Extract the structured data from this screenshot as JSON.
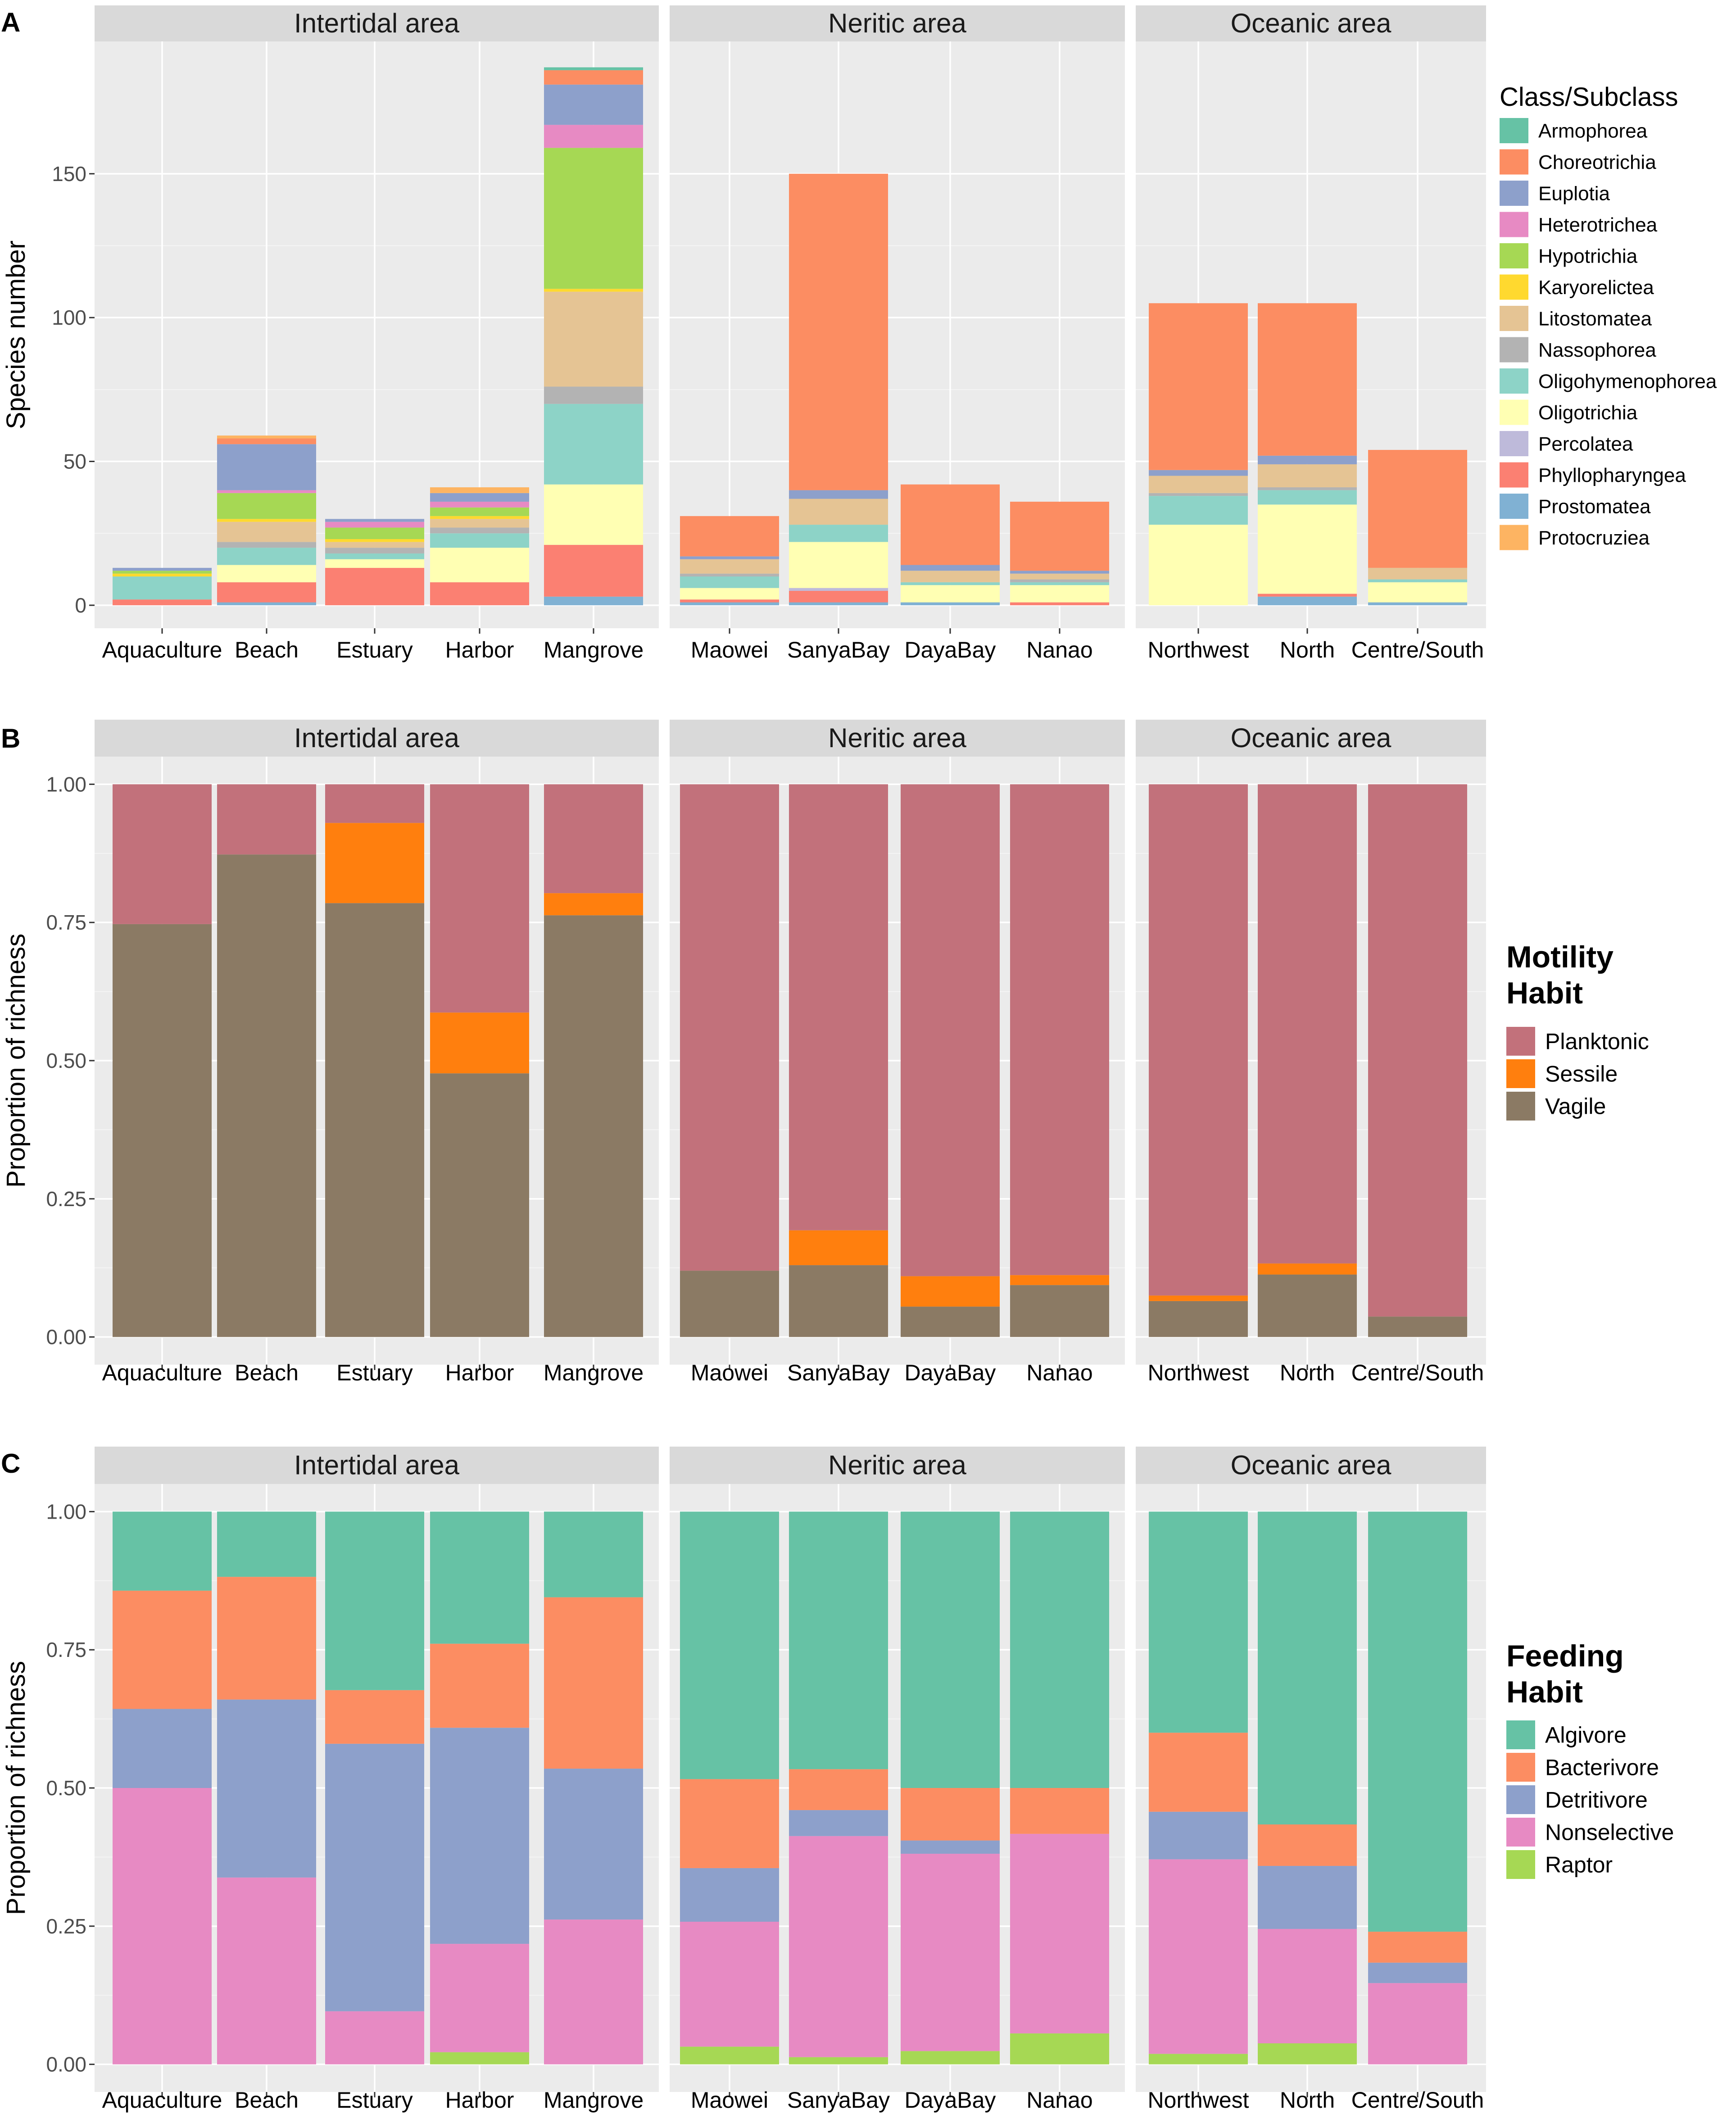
{
  "figure": {
    "panels": [
      "A",
      "B",
      "C"
    ]
  },
  "colors": {
    "panel_bg": "#ebebeb",
    "strip_bg": "#d9d9d9",
    "grid": "#ffffff",
    "text": "#1a1a1a",
    "axis_text": "#4d4d4d"
  },
  "chart_data": [
    {
      "panel": "A",
      "type": "bar",
      "stacked": true,
      "facets": [
        {
          "title": "Intertidal area",
          "categories": [
            "Aquaculture",
            "Beach",
            "Estuary",
            "Harbor",
            "Mangrove"
          ]
        },
        {
          "title": "Neritic area",
          "categories": [
            "Maowei",
            "SanyaBay",
            "DayaBay",
            "Nanao"
          ]
        },
        {
          "title": "Oceanic area",
          "categories": [
            "Northwest",
            "North",
            "Centre/South"
          ]
        }
      ],
      "ylabel": "Species number",
      "ylim": [
        -8,
        196
      ],
      "yticks": [
        0,
        50,
        100,
        150
      ],
      "legend_title": "Class/Subclass",
      "stack_order": [
        "Prostomatea",
        "Phyllopharyngea",
        "Percolatea",
        "Oligotrichia",
        "Oligohymenophorea",
        "Nassophorea",
        "Litostomatea",
        "Karyorelictea",
        "Hypotrichia",
        "Heterotrichea",
        "Euplotia",
        "Choreotrichia",
        "Armophorea",
        "Protocruziea"
      ],
      "series": [
        {
          "name": "Armophorea",
          "color": "#66c2a5",
          "values": {
            "Aquaculture": 0,
            "Beach": 0,
            "Estuary": 0,
            "Harbor": 0,
            "Mangrove": 1,
            "Maowei": 0,
            "SanyaBay": 0,
            "DayaBay": 0,
            "Nanao": 0,
            "Northwest": 0,
            "North": 0,
            "Centre/South": 0
          }
        },
        {
          "name": "Choreotrichia",
          "color": "#fc8d62",
          "values": {
            "Aquaculture": 0,
            "Beach": 2,
            "Estuary": 0,
            "Harbor": 0,
            "Mangrove": 5,
            "Maowei": 14,
            "SanyaBay": 110,
            "DayaBay": 28,
            "Nanao": 24,
            "Northwest": 58,
            "North": 53,
            "Centre/South": 41
          }
        },
        {
          "name": "Euplotia",
          "color": "#8da0cb",
          "values": {
            "Aquaculture": 1,
            "Beach": 16,
            "Estuary": 1,
            "Harbor": 3,
            "Mangrove": 14,
            "Maowei": 1,
            "SanyaBay": 3,
            "DayaBay": 2,
            "Nanao": 1,
            "Northwest": 2,
            "North": 3,
            "Centre/South": 0
          }
        },
        {
          "name": "Heterotrichea",
          "color": "#e78ac3",
          "values": {
            "Aquaculture": 0,
            "Beach": 1,
            "Estuary": 2,
            "Harbor": 2,
            "Mangrove": 8,
            "Maowei": 0,
            "SanyaBay": 0,
            "DayaBay": 0,
            "Nanao": 0,
            "Northwest": 0,
            "North": 0,
            "Centre/South": 0
          }
        },
        {
          "name": "Hypotrichia",
          "color": "#a6d854",
          "values": {
            "Aquaculture": 1,
            "Beach": 9,
            "Estuary": 4,
            "Harbor": 3,
            "Mangrove": 49,
            "Maowei": 0,
            "SanyaBay": 0,
            "DayaBay": 0,
            "Nanao": 0,
            "Northwest": 0,
            "North": 0,
            "Centre/South": 0
          }
        },
        {
          "name": "Karyorelictea",
          "color": "#ffd92f",
          "values": {
            "Aquaculture": 1,
            "Beach": 1,
            "Estuary": 1,
            "Harbor": 1,
            "Mangrove": 1,
            "Maowei": 0,
            "SanyaBay": 0,
            "DayaBay": 0,
            "Nanao": 0,
            "Northwest": 0,
            "North": 0,
            "Centre/South": 0
          }
        },
        {
          "name": "Litostomatea",
          "color": "#e5c494",
          "values": {
            "Aquaculture": 0,
            "Beach": 7,
            "Estuary": 2,
            "Harbor": 3,
            "Mangrove": 33,
            "Maowei": 5,
            "SanyaBay": 9,
            "DayaBay": 4,
            "Nanao": 2,
            "Northwest": 6,
            "North": 8,
            "Centre/South": 4
          }
        },
        {
          "name": "Nassophorea",
          "color": "#b3b3b3",
          "values": {
            "Aquaculture": 0,
            "Beach": 2,
            "Estuary": 2,
            "Harbor": 2,
            "Mangrove": 6,
            "Maowei": 1,
            "SanyaBay": 0,
            "DayaBay": 0,
            "Nanao": 1,
            "Northwest": 1,
            "North": 1,
            "Centre/South": 0
          }
        },
        {
          "name": "Oligohymenophorea",
          "color": "#8dd3c7",
          "values": {
            "Aquaculture": 8,
            "Beach": 6,
            "Estuary": 2,
            "Harbor": 5,
            "Mangrove": 28,
            "Maowei": 4,
            "SanyaBay": 6,
            "DayaBay": 1,
            "Nanao": 1,
            "Northwest": 10,
            "North": 5,
            "Centre/South": 1
          }
        },
        {
          "name": "Oligotrichia",
          "color": "#ffffb3",
          "values": {
            "Aquaculture": 0,
            "Beach": 6,
            "Estuary": 3,
            "Harbor": 12,
            "Mangrove": 21,
            "Maowei": 4,
            "SanyaBay": 16,
            "DayaBay": 6,
            "Nanao": 6,
            "Northwest": 28,
            "North": 31,
            "Centre/South": 7
          }
        },
        {
          "name": "Percolatea",
          "color": "#bebada",
          "values": {
            "Aquaculture": 0,
            "Beach": 0,
            "Estuary": 0,
            "Harbor": 0,
            "Mangrove": 0,
            "Maowei": 0,
            "SanyaBay": 1,
            "DayaBay": 0,
            "Nanao": 0,
            "Northwest": 0,
            "North": 0,
            "Centre/South": 0
          }
        },
        {
          "name": "Phyllopharyngea",
          "color": "#fb8072",
          "values": {
            "Aquaculture": 2,
            "Beach": 7,
            "Estuary": 13,
            "Harbor": 8,
            "Mangrove": 18,
            "Maowei": 1,
            "SanyaBay": 4,
            "DayaBay": 0,
            "Nanao": 1,
            "Northwest": 0,
            "North": 1,
            "Centre/South": 0
          }
        },
        {
          "name": "Prostomatea",
          "color": "#80b1d3",
          "values": {
            "Aquaculture": 0,
            "Beach": 1,
            "Estuary": 0,
            "Harbor": 0,
            "Mangrove": 3,
            "Maowei": 1,
            "SanyaBay": 1,
            "DayaBay": 1,
            "Nanao": 0,
            "Northwest": 0,
            "North": 3,
            "Centre/South": 1
          }
        },
        {
          "name": "Protocruziea",
          "color": "#fdb462",
          "values": {
            "Aquaculture": 0,
            "Beach": 1,
            "Estuary": 0,
            "Harbor": 2,
            "Mangrove": 0,
            "Maowei": 0,
            "SanyaBay": 0,
            "DayaBay": 0,
            "Nanao": 0,
            "Northwest": 0,
            "North": 0,
            "Centre/South": 0
          }
        }
      ]
    },
    {
      "panel": "B",
      "type": "bar",
      "stacked": true,
      "facets": [
        {
          "title": "Intertidal area",
          "categories": [
            "Aquaculture",
            "Beach",
            "Estuary",
            "Harbor",
            "Mangrove"
          ]
        },
        {
          "title": "Neritic area",
          "categories": [
            "Maowei",
            "SanyaBay",
            "DayaBay",
            "Nanao"
          ]
        },
        {
          "title": "Oceanic area",
          "categories": [
            "Northwest",
            "North",
            "Centre/South"
          ]
        }
      ],
      "ylabel": "Proportion of richness",
      "ylim": [
        -0.05,
        1.05
      ],
      "yticks": [
        "0.00",
        "0.25",
        "0.50",
        "0.75",
        "1.00"
      ],
      "legend_title": [
        "Motility",
        "Habit"
      ],
      "stack_order": [
        "Vagile",
        "Sessile",
        "Planktonic"
      ],
      "series": [
        {
          "name": "Planktonic",
          "color": "#c2717b",
          "values": {
            "Aquaculture": 0.253,
            "Beach": 0.127,
            "Estuary": 0.07,
            "Harbor": 0.413,
            "Mangrove": 0.197,
            "Maowei": 0.88,
            "SanyaBay": 0.807,
            "DayaBay": 0.89,
            "Nanao": 0.888,
            "Northwest": 0.925,
            "North": 0.867,
            "Centre/South": 0.963
          }
        },
        {
          "name": "Sessile",
          "color": "#ff7f0e",
          "values": {
            "Aquaculture": 0,
            "Beach": 0,
            "Estuary": 0.145,
            "Harbor": 0.11,
            "Mangrove": 0.04,
            "Maowei": 0,
            "SanyaBay": 0.063,
            "DayaBay": 0.055,
            "Nanao": 0.018,
            "Northwest": 0.01,
            "North": 0.02,
            "Centre/South": 0
          }
        },
        {
          "name": "Vagile",
          "color": "#8b7a64",
          "values": {
            "Aquaculture": 0.747,
            "Beach": 0.873,
            "Estuary": 0.785,
            "Harbor": 0.477,
            "Mangrove": 0.763,
            "Maowei": 0.12,
            "SanyaBay": 0.13,
            "DayaBay": 0.055,
            "Nanao": 0.094,
            "Northwest": 0.065,
            "North": 0.113,
            "Centre/South": 0.037
          }
        }
      ]
    },
    {
      "panel": "C",
      "type": "bar",
      "stacked": true,
      "facets": [
        {
          "title": "Intertidal area",
          "categories": [
            "Aquaculture",
            "Beach",
            "Estuary",
            "Harbor",
            "Mangrove"
          ]
        },
        {
          "title": "Neritic area",
          "categories": [
            "Maowei",
            "SanyaBay",
            "DayaBay",
            "Nanao"
          ]
        },
        {
          "title": "Oceanic area",
          "categories": [
            "Northwest",
            "North",
            "Centre/South"
          ]
        }
      ],
      "ylabel": "Proportion of richness",
      "ylim": [
        -0.05,
        1.05
      ],
      "yticks": [
        "0.00",
        "0.25",
        "0.50",
        "0.75",
        "1.00"
      ],
      "legend_title": [
        "Feeding",
        "Habit"
      ],
      "stack_order": [
        "Raptor",
        "Nonselective",
        "Detritivore",
        "Bacterivore",
        "Algivore"
      ],
      "series": [
        {
          "name": "Algivore",
          "color": "#66c2a5",
          "values": {
            "Aquaculture": 0.143,
            "Beach": 0.118,
            "Estuary": 0.323,
            "Harbor": 0.239,
            "Mangrove": 0.155,
            "Maowei": 0.484,
            "SanyaBay": 0.466,
            "DayaBay": 0.5,
            "Nanao": 0.5,
            "Northwest": 0.4,
            "North": 0.566,
            "Centre/South": 0.76
          }
        },
        {
          "name": "Bacterivore",
          "color": "#fc8d62",
          "values": {
            "Aquaculture": 0.214,
            "Beach": 0.222,
            "Estuary": 0.097,
            "Harbor": 0.152,
            "Mangrove": 0.31,
            "Maowei": 0.161,
            "SanyaBay": 0.074,
            "DayaBay": 0.095,
            "Nanao": 0.083,
            "Northwest": 0.143,
            "North": 0.075,
            "Centre/South": 0.056
          }
        },
        {
          "name": "Detritivore",
          "color": "#8da0cb",
          "values": {
            "Aquaculture": 0.143,
            "Beach": 0.322,
            "Estuary": 0.484,
            "Harbor": 0.391,
            "Mangrove": 0.273,
            "Maowei": 0.097,
            "SanyaBay": 0.047,
            "DayaBay": 0.024,
            "Nanao": 0,
            "Northwest": 0.086,
            "North": 0.114,
            "Centre/South": 0.037
          }
        },
        {
          "name": "Nonselective",
          "color": "#e78ac3",
          "values": {
            "Aquaculture": 0.5,
            "Beach": 0.338,
            "Estuary": 0.096,
            "Harbor": 0.196,
            "Mangrove": 0.262,
            "Maowei": 0.226,
            "SanyaBay": 0.4,
            "DayaBay": 0.357,
            "Nanao": 0.361,
            "Northwest": 0.352,
            "North": 0.207,
            "Centre/South": 0.147
          }
        },
        {
          "name": "Raptor",
          "color": "#a6d854",
          "values": {
            "Aquaculture": 0,
            "Beach": 0,
            "Estuary": 0,
            "Harbor": 0.022,
            "Mangrove": 0,
            "Maowei": 0.032,
            "SanyaBay": 0.013,
            "DayaBay": 0.024,
            "Nanao": 0.056,
            "Northwest": 0.019,
            "North": 0.038,
            "Centre/South": 0
          }
        }
      ]
    }
  ]
}
